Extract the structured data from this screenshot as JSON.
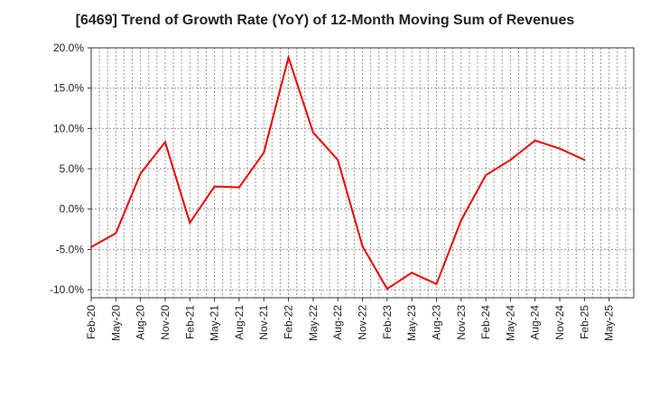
{
  "chart_data": {
    "type": "line",
    "title": "[6469]  Trend of Growth Rate (YoY) of 12-Month Moving Sum of Revenues",
    "xlabel": "",
    "ylabel": "",
    "ylim": [
      -11,
      20
    ],
    "yticks": [
      20,
      15,
      10,
      5,
      0,
      -5,
      -10
    ],
    "ytick_labels": [
      "20.0%",
      "15.0%",
      "10.0%",
      "5.0%",
      "0.0%",
      "-5.0%",
      "-10.0%"
    ],
    "categories": [
      "Feb-20",
      "May-20",
      "Aug-20",
      "Nov-20",
      "Feb-21",
      "May-21",
      "Aug-21",
      "Nov-21",
      "Feb-22",
      "May-22",
      "Aug-22",
      "Nov-22",
      "Feb-23",
      "May-23",
      "Aug-23",
      "Nov-23",
      "Feb-24",
      "May-24",
      "Aug-24",
      "Nov-24",
      "Feb-25",
      "May-25"
    ],
    "grid": true,
    "series": [
      {
        "color": "#ee0000",
        "values": [
          -4.7,
          -3.0,
          4.4,
          8.3,
          -1.7,
          2.8,
          2.7,
          7.0,
          18.8,
          9.5,
          6.1,
          -4.6,
          -9.9,
          -7.9,
          -9.3,
          -1.4,
          4.2,
          6.1,
          8.5,
          7.5,
          6.1,
          null
        ]
      }
    ]
  }
}
